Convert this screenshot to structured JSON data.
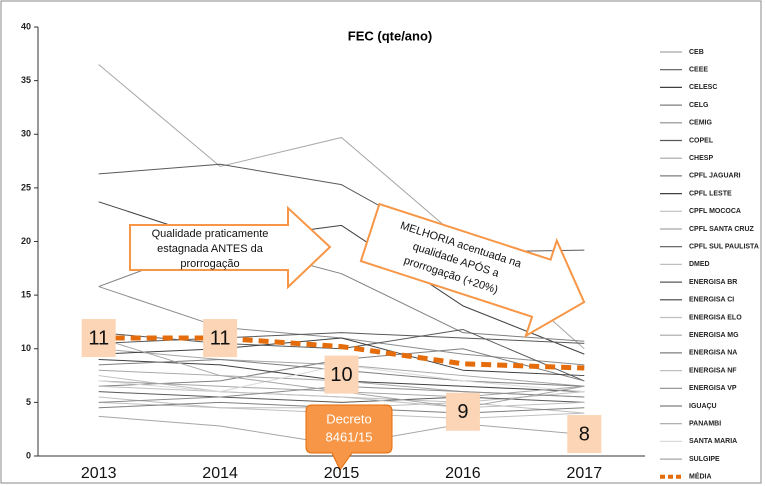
{
  "chart_data": {
    "type": "line",
    "title": "FEC (qte/ano)",
    "categories": [
      "2013",
      "2014",
      "2015",
      "2016",
      "2017"
    ],
    "ylim": [
      0,
      40
    ],
    "yticks": [
      0,
      5,
      10,
      15,
      20,
      25,
      30,
      35,
      40
    ],
    "legend": "right",
    "annotations": [
      {
        "text": [
          "Qualidade praticamente",
          "estagnada ANTES da",
          "prorrogação"
        ]
      },
      {
        "text": [
          "MELHORIA acentuada na",
          "qualidade APÓS a",
          "prorrogação (+20%)"
        ]
      },
      {
        "text": [
          "Decreto",
          "8461/15"
        ]
      }
    ],
    "series": [
      {
        "name": "CEB",
        "color": "#a6a6a6",
        "values": [
          36.5,
          27,
          29.7,
          20,
          10
        ]
      },
      {
        "name": "CEEE",
        "color": "#595959",
        "values": [
          26.3,
          27.2,
          25.3,
          19,
          19.2
        ]
      },
      {
        "name": "CELESC",
        "color": "#404040",
        "values": [
          23.7,
          20,
          21.5,
          14,
          9.5
        ]
      },
      {
        "name": "CELG",
        "color": "#7f7f7f",
        "values": [
          15.8,
          20,
          17,
          11.5,
          10.7
        ]
      },
      {
        "name": "CEMIG",
        "color": "#8c8c8c",
        "values": [
          15.8,
          12,
          11,
          9.5,
          8.5
        ]
      },
      {
        "name": "COPEL",
        "color": "#595959",
        "values": [
          11.5,
          10.5,
          10,
          11.8,
          7
        ]
      },
      {
        "name": "CHESP",
        "color": "#a6a6a6",
        "values": [
          10,
          9,
          8.5,
          7.5,
          6.5
        ]
      },
      {
        "name": "CPFL JAGUARI",
        "color": "#7f7f7f",
        "values": [
          6.5,
          7,
          9,
          10,
          7
        ]
      },
      {
        "name": "CPFL LESTE",
        "color": "#404040",
        "values": [
          9,
          8.5,
          7,
          6.5,
          6
        ]
      },
      {
        "name": "CPFL MOCOCA",
        "color": "#bfbfbf",
        "values": [
          7.5,
          6,
          5.5,
          5,
          6
        ]
      },
      {
        "name": "CPFL SANTA CRUZ",
        "color": "#a6a6a6",
        "values": [
          8,
          7.5,
          7,
          6,
          5.5
        ]
      },
      {
        "name": "CPFL SUL PAULISTA",
        "color": "#595959",
        "values": [
          6,
          5.5,
          5,
          5.5,
          5
        ]
      },
      {
        "name": "DMED",
        "color": "#bfbfbf",
        "values": [
          5,
          4.5,
          4,
          3.5,
          4
        ]
      },
      {
        "name": "ENERGISA BR",
        "color": "#595959",
        "values": [
          10.5,
          11,
          11.5,
          11,
          10.5
        ]
      },
      {
        "name": "ENERGISA CI",
        "color": "#404040",
        "values": [
          9.5,
          10,
          11,
          8,
          7.5
        ]
      },
      {
        "name": "ENERGISA ELO",
        "color": "#bfbfbf",
        "values": [
          5.5,
          4.5,
          4.5,
          5,
          4
        ]
      },
      {
        "name": "ENERGISA MG",
        "color": "#a6a6a6",
        "values": [
          7,
          6.5,
          6,
          5.5,
          6.5
        ]
      },
      {
        "name": "ENERGISA NA",
        "color": "#7f7f7f",
        "values": [
          8.5,
          9,
          8,
          7,
          6.5
        ]
      },
      {
        "name": "ENERGISA NF",
        "color": "#bfbfbf",
        "values": [
          6.5,
          6,
          5.5,
          4.5,
          5
        ]
      },
      {
        "name": "ENERGISA VP",
        "color": "#8c8c8c",
        "values": [
          5,
          5.5,
          6.5,
          6,
          5.5
        ]
      },
      {
        "name": "IGUAÇU",
        "color": "#7f7f7f",
        "values": [
          4.5,
          5,
          4.5,
          4,
          4.5
        ]
      },
      {
        "name": "PANAMBI",
        "color": "#a6a6a6",
        "values": [
          3.7,
          2.8,
          1,
          3,
          2
        ]
      },
      {
        "name": "SANTA MARIA",
        "color": "#d9d9d9",
        "values": [
          7,
          6,
          8.5,
          7,
          6
        ]
      },
      {
        "name": "SULGIPE",
        "color": "#a6a6a6",
        "values": [
          11,
          7.5,
          6,
          4.5,
          6.5
        ]
      },
      {
        "name": "MÉDIA",
        "color": "#e46c0a",
        "dashed": true,
        "values": [
          11,
          11,
          10.2,
          8.6,
          8.2
        ],
        "value_labels": [
          "11",
          "11",
          "10",
          "9",
          "8"
        ]
      }
    ]
  }
}
